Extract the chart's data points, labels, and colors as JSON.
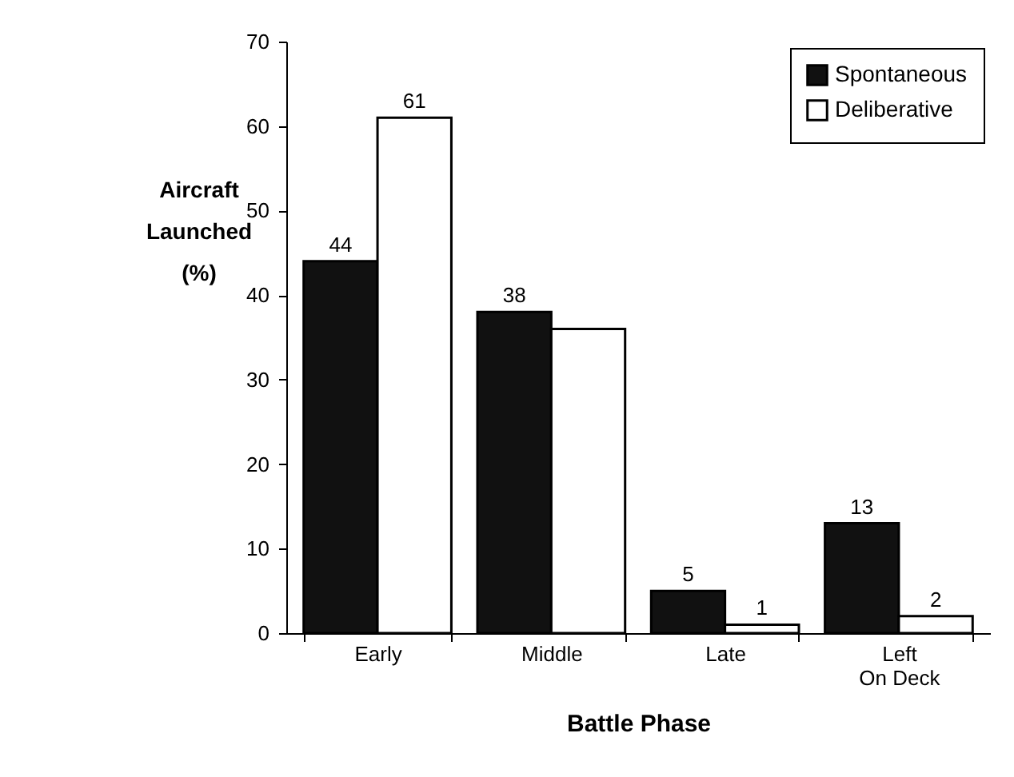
{
  "chart_data": {
    "type": "bar",
    "xlabel": "Battle Phase",
    "ylabel": "Aircraft Launched (%)",
    "categories": [
      "Early",
      "Middle",
      "Late",
      "Left On Deck"
    ],
    "series": [
      {
        "name": "Spontaneous",
        "color": "#111111",
        "values": [
          44,
          38,
          5,
          13
        ],
        "value_labels": [
          "44",
          "38",
          "5",
          "13"
        ]
      },
      {
        "name": "Deliberative",
        "color": "#ffffff",
        "values": [
          61,
          36,
          1,
          2
        ],
        "value_labels": [
          "61",
          null,
          "1",
          "2"
        ]
      }
    ],
    "ylim": [
      0,
      70
    ],
    "yticks": [
      0,
      10,
      20,
      30,
      40,
      50,
      60,
      70
    ],
    "grid": false,
    "legend": "top right"
  }
}
